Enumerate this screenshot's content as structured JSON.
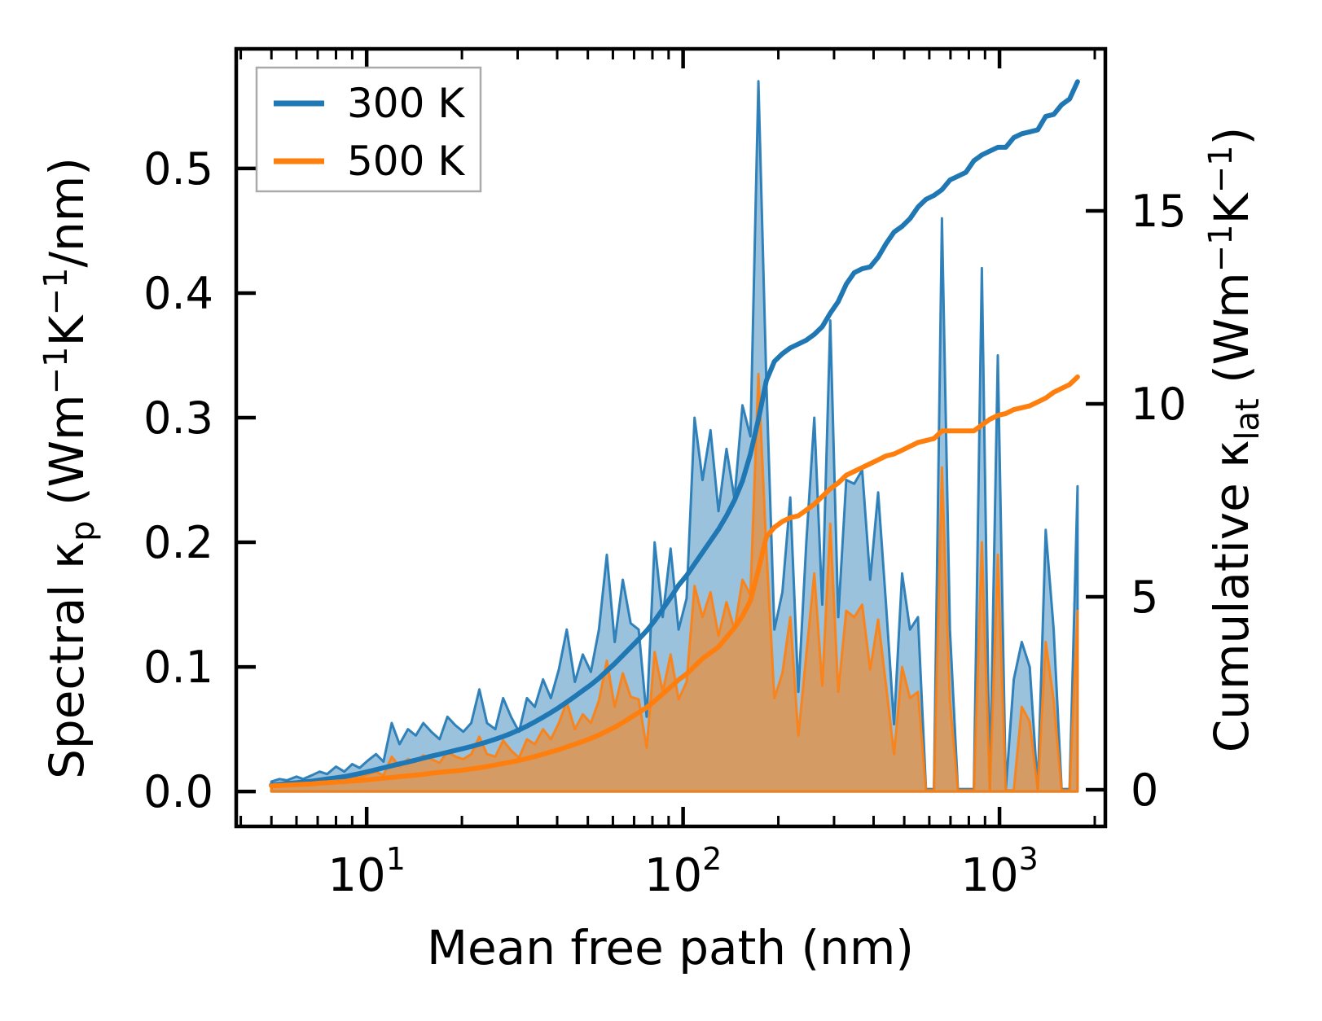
{
  "chart_data": {
    "type": "area",
    "x_scale": "log",
    "grid": false,
    "background": "#ffffff",
    "xlabel": "Mean free path (nm)",
    "ylabel_left": "Spectral κ_p (Wm⁻¹K⁻¹/nm)",
    "ylabel_right": "Cumulative κ_lat (Wm⁻¹K⁻¹)",
    "ylabel_left_parts": [
      {
        "t": "Spectral κ"
      },
      {
        "t": "p",
        "style": "sub"
      },
      {
        "t": " (Wm",
        "style": "n"
      },
      {
        "t": "−1",
        "style": "sup"
      },
      {
        "t": "K",
        "style": "n"
      },
      {
        "t": "−1",
        "style": "sup"
      },
      {
        "t": "/nm)",
        "style": "n"
      }
    ],
    "ylabel_right_parts": [
      {
        "t": "Cumulative κ"
      },
      {
        "t": "lat",
        "style": "sub"
      },
      {
        "t": " (Wm",
        "style": "n"
      },
      {
        "t": "−1",
        "style": "sup"
      },
      {
        "t": "K",
        "style": "n"
      },
      {
        "t": "−1",
        "style": "sup"
      },
      {
        "t": ")",
        "style": "n"
      }
    ],
    "xlim": [
      3.87,
      2160
    ],
    "ylim_left": [
      -0.028,
      0.596
    ],
    "ylim_right": [
      -0.95,
      19.2
    ],
    "x_ticks": [
      {
        "value": 10,
        "base": "10",
        "exp": "1"
      },
      {
        "value": 100,
        "base": "10",
        "exp": "2"
      },
      {
        "value": 1000,
        "base": "10",
        "exp": "3"
      }
    ],
    "x_minor_ticks": [
      4,
      5,
      6,
      7,
      8,
      9,
      20,
      30,
      40,
      50,
      60,
      70,
      80,
      90,
      200,
      300,
      400,
      500,
      600,
      700,
      800,
      900,
      2000
    ],
    "y_left_ticks": [
      {
        "value": 0.0,
        "label": "0.0"
      },
      {
        "value": 0.1,
        "label": "0.1"
      },
      {
        "value": 0.2,
        "label": "0.2"
      },
      {
        "value": 0.3,
        "label": "0.3"
      },
      {
        "value": 0.4,
        "label": "0.4"
      },
      {
        "value": 0.5,
        "label": "0.5"
      }
    ],
    "y_right_ticks": [
      {
        "value": 0,
        "label": "0"
      },
      {
        "value": 5,
        "label": "5"
      },
      {
        "value": 10,
        "label": "10"
      },
      {
        "value": 15,
        "label": "15"
      }
    ],
    "legend": {
      "position": "upper left",
      "entries": [
        {
          "label": "300 K",
          "color": "#1f77b4"
        },
        {
          "label": "500 K",
          "color": "#ff7f0e"
        }
      ]
    },
    "colors": {
      "c300": "#1f77b4",
      "c500": "#ff7f0e",
      "spine": "#000000",
      "legend_border": "#aaaaaa"
    },
    "x": [
      5.0,
      5.3,
      5.6,
      6.0,
      6.3,
      6.7,
      7.1,
      7.5,
      8.0,
      8.5,
      9.0,
      9.5,
      10.1,
      10.7,
      11.3,
      12.0,
      12.7,
      13.5,
      14.3,
      15.1,
      16.0,
      17.0,
      18.0,
      19.1,
      20.2,
      21.4,
      22.7,
      24.0,
      25.5,
      27.0,
      28.6,
      30.3,
      32.1,
      34.0,
      36.1,
      38.2,
      40.5,
      42.9,
      45.5,
      48.2,
      51.1,
      54.2,
      57.4,
      60.8,
      64.5,
      68.3,
      72.4,
      76.7,
      81.3,
      86.2,
      91.3,
      96.8,
      102.6,
      108.7,
      115.2,
      122.1,
      129.4,
      137.1,
      145.3,
      154.0,
      163.2,
      173.0,
      183.3,
      194.3,
      205.9,
      218.2,
      231.3,
      245.1,
      259.8,
      275.3,
      291.8,
      309.2,
      327.7,
      347.3,
      368.1,
      390.1,
      413.4,
      438.1,
      464.3,
      492.1,
      521.5,
      552.7,
      585.7,
      620.7,
      657.8,
      697.2,
      738.8,
      783.0,
      829.8,
      879.4,
      932.0,
      987.7,
      1046.7,
      1109.3,
      1175.6,
      1245.9,
      1320.4,
      1399.3,
      1483.0,
      1571.6,
      1665.6,
      1765.2
    ],
    "series": [
      {
        "name": "300 K spectral",
        "kind": "area",
        "axis": "left",
        "color": "#1f77b4",
        "values": [
          0.008,
          0.01,
          0.009,
          0.012,
          0.01,
          0.013,
          0.016,
          0.014,
          0.02,
          0.016,
          0.022,
          0.019,
          0.025,
          0.03,
          0.024,
          0.055,
          0.038,
          0.05,
          0.045,
          0.055,
          0.048,
          0.042,
          0.06,
          0.053,
          0.048,
          0.055,
          0.082,
          0.055,
          0.05,
          0.075,
          0.06,
          0.048,
          0.075,
          0.068,
          0.09,
          0.075,
          0.098,
          0.13,
          0.088,
          0.11,
          0.096,
          0.13,
          0.19,
          0.12,
          0.17,
          0.135,
          0.13,
          0.06,
          0.2,
          0.14,
          0.195,
          0.13,
          0.155,
          0.3,
          0.25,
          0.29,
          0.225,
          0.275,
          0.235,
          0.31,
          0.285,
          0.57,
          0.33,
          0.13,
          0.16,
          0.236,
          0.08,
          0.2,
          0.3,
          0.15,
          0.378,
          0.14,
          0.25,
          0.247,
          0.258,
          0.17,
          0.24,
          0.15,
          0.054,
          0.175,
          0.13,
          0.14,
          0.002,
          0.002,
          0.46,
          0.13,
          0.002,
          0.002,
          0.002,
          0.42,
          0.002,
          0.35,
          0.002,
          0.09,
          0.12,
          0.1,
          0.002,
          0.21,
          0.13,
          0.002,
          0.002,
          0.245
        ]
      },
      {
        "name": "500 K spectral",
        "kind": "area",
        "axis": "left",
        "color": "#ff7f0e",
        "values": [
          0.004,
          0.005,
          0.005,
          0.006,
          0.006,
          0.007,
          0.008,
          0.008,
          0.01,
          0.009,
          0.012,
          0.011,
          0.014,
          0.016,
          0.013,
          0.028,
          0.02,
          0.026,
          0.024,
          0.029,
          0.026,
          0.023,
          0.032,
          0.028,
          0.026,
          0.03,
          0.044,
          0.03,
          0.028,
          0.041,
          0.033,
          0.027,
          0.042,
          0.038,
          0.05,
          0.042,
          0.055,
          0.072,
          0.05,
          0.062,
          0.055,
          0.073,
          0.105,
          0.068,
          0.095,
          0.076,
          0.074,
          0.035,
          0.112,
          0.08,
          0.11,
          0.074,
          0.088,
          0.165,
          0.14,
          0.16,
          0.125,
          0.152,
          0.13,
          0.17,
          0.158,
          0.335,
          0.195,
          0.075,
          0.095,
          0.14,
          0.045,
          0.11,
          0.175,
          0.085,
          0.215,
          0.08,
          0.145,
          0.14,
          0.15,
          0.098,
          0.138,
          0.085,
          0.03,
          0.1,
          0.075,
          0.08,
          0.001,
          0.001,
          0.26,
          0.073,
          0.001,
          0.001,
          0.001,
          0.2,
          0.001,
          0.19,
          0.001,
          0.001,
          0.068,
          0.056,
          0.001,
          0.12,
          0.073,
          0.001,
          0.001,
          0.145
        ]
      },
      {
        "name": "300 K cumulative",
        "kind": "line",
        "axis": "right",
        "color": "#1f77b4",
        "values": [
          0.12,
          0.14,
          0.16,
          0.18,
          0.2,
          0.22,
          0.25,
          0.28,
          0.31,
          0.34,
          0.38,
          0.42,
          0.47,
          0.52,
          0.57,
          0.62,
          0.67,
          0.72,
          0.77,
          0.82,
          0.87,
          0.92,
          0.97,
          1.02,
          1.07,
          1.12,
          1.18,
          1.24,
          1.31,
          1.38,
          1.46,
          1.55,
          1.65,
          1.76,
          1.88,
          2.0,
          2.13,
          2.27,
          2.42,
          2.57,
          2.72,
          2.89,
          3.08,
          3.27,
          3.48,
          3.69,
          3.9,
          4.12,
          4.38,
          4.68,
          4.98,
          5.3,
          5.55,
          5.85,
          6.15,
          6.45,
          6.75,
          7.1,
          7.5,
          8.0,
          8.7,
          9.6,
          10.6,
          11.1,
          11.3,
          11.45,
          11.55,
          11.65,
          11.8,
          12.0,
          12.35,
          12.65,
          13.1,
          13.4,
          13.5,
          13.55,
          13.8,
          14.15,
          14.45,
          14.6,
          14.8,
          15.1,
          15.3,
          15.4,
          15.55,
          15.8,
          15.9,
          16.0,
          16.3,
          16.45,
          16.55,
          16.65,
          16.65,
          16.9,
          17.0,
          17.05,
          17.1,
          17.45,
          17.5,
          17.75,
          17.9,
          18.35
        ]
      },
      {
        "name": "500 K cumulative",
        "kind": "line",
        "axis": "right",
        "color": "#ff7f0e",
        "values": [
          0.1,
          0.11,
          0.12,
          0.13,
          0.14,
          0.15,
          0.17,
          0.18,
          0.2,
          0.21,
          0.23,
          0.24,
          0.26,
          0.28,
          0.3,
          0.32,
          0.34,
          0.36,
          0.38,
          0.4,
          0.43,
          0.45,
          0.47,
          0.49,
          0.51,
          0.54,
          0.57,
          0.6,
          0.64,
          0.68,
          0.72,
          0.76,
          0.81,
          0.86,
          0.92,
          0.98,
          1.04,
          1.11,
          1.18,
          1.25,
          1.33,
          1.42,
          1.52,
          1.62,
          1.74,
          1.87,
          2.0,
          2.13,
          2.3,
          2.48,
          2.66,
          2.85,
          3.0,
          3.2,
          3.4,
          3.55,
          3.7,
          3.95,
          4.2,
          4.5,
          4.9,
          5.7,
          6.55,
          6.8,
          6.95,
          7.05,
          7.1,
          7.25,
          7.4,
          7.6,
          7.8,
          7.95,
          8.15,
          8.25,
          8.35,
          8.45,
          8.55,
          8.65,
          8.7,
          8.8,
          8.9,
          9.0,
          9.05,
          9.1,
          9.3,
          9.3,
          9.3,
          9.3,
          9.3,
          9.45,
          9.6,
          9.7,
          9.75,
          9.85,
          9.9,
          9.95,
          10.05,
          10.15,
          10.3,
          10.4,
          10.5,
          10.7
        ]
      }
    ]
  }
}
